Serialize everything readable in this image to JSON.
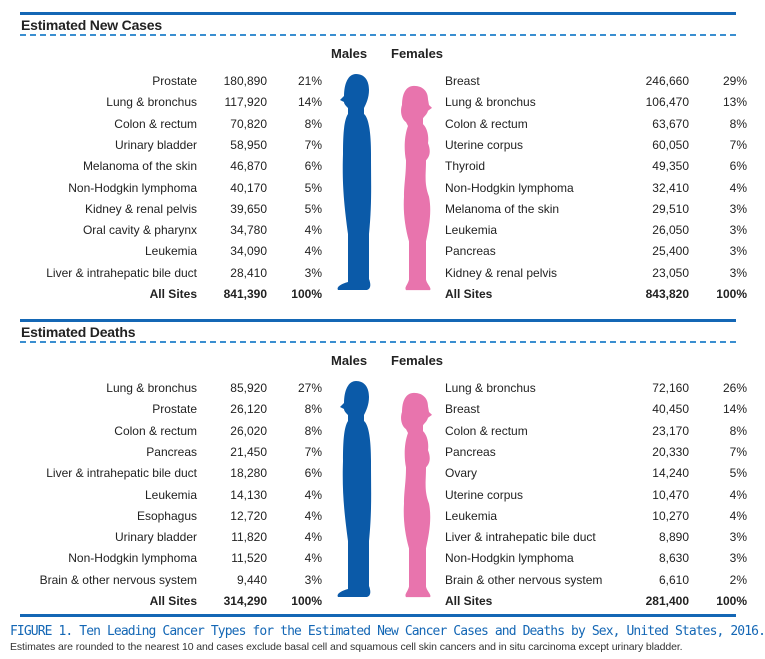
{
  "figure": {
    "caption": "FIGURE 1. Ten Leading Cancer Types for the Estimated New Cancer Cases and Deaths by Sex, United States, 2016.",
    "note": "Estimates are rounded to the nearest 10 and cases exclude basal cell and squamous cell skin cancers and in situ carcinoma except urinary bladder.",
    "colors": {
      "males": "#0b5aa8",
      "females": "#e874ad",
      "rule": "#1467b5"
    },
    "icons": {
      "males": "male-silhouette-icon",
      "females": "female-silhouette-icon"
    }
  },
  "sections": [
    {
      "title": "Estimated New Cases",
      "males_label": "Males",
      "females_label": "Females",
      "males": [
        {
          "site": "Prostate",
          "count": "180,890",
          "pct": "21%"
        },
        {
          "site": "Lung & bronchus",
          "count": "117,920",
          "pct": "14%"
        },
        {
          "site": "Colon & rectum",
          "count": "70,820",
          "pct": "8%"
        },
        {
          "site": "Urinary bladder",
          "count": "58,950",
          "pct": "7%"
        },
        {
          "site": "Melanoma of the skin",
          "count": "46,870",
          "pct": "6%"
        },
        {
          "site": "Non-Hodgkin lymphoma",
          "count": "40,170",
          "pct": "5%"
        },
        {
          "site": "Kidney & renal pelvis",
          "count": "39,650",
          "pct": "5%"
        },
        {
          "site": "Oral cavity & pharynx",
          "count": "34,780",
          "pct": "4%"
        },
        {
          "site": "Leukemia",
          "count": "34,090",
          "pct": "4%"
        },
        {
          "site": "Liver & intrahepatic bile duct",
          "count": "28,410",
          "pct": "3%"
        }
      ],
      "males_total": {
        "site": "All Sites",
        "count": "841,390",
        "pct": "100%"
      },
      "females": [
        {
          "site": "Breast",
          "count": "246,660",
          "pct": "29%"
        },
        {
          "site": "Lung & bronchus",
          "count": "106,470",
          "pct": "13%"
        },
        {
          "site": "Colon & rectum",
          "count": "63,670",
          "pct": "8%"
        },
        {
          "site": "Uterine corpus",
          "count": "60,050",
          "pct": "7%"
        },
        {
          "site": "Thyroid",
          "count": "49,350",
          "pct": "6%"
        },
        {
          "site": "Non-Hodgkin lymphoma",
          "count": "32,410",
          "pct": "4%"
        },
        {
          "site": "Melanoma of the skin",
          "count": "29,510",
          "pct": "3%"
        },
        {
          "site": "Leukemia",
          "count": "26,050",
          "pct": "3%"
        },
        {
          "site": "Pancreas",
          "count": "25,400",
          "pct": "3%"
        },
        {
          "site": "Kidney & renal pelvis",
          "count": "23,050",
          "pct": "3%"
        }
      ],
      "females_total": {
        "site": "All Sites",
        "count": "843,820",
        "pct": "100%"
      }
    },
    {
      "title": "Estimated Deaths",
      "males_label": "Males",
      "females_label": "Females",
      "males": [
        {
          "site": "Lung & bronchus",
          "count": "85,920",
          "pct": "27%"
        },
        {
          "site": "Prostate",
          "count": "26,120",
          "pct": "8%"
        },
        {
          "site": "Colon & rectum",
          "count": "26,020",
          "pct": "8%"
        },
        {
          "site": "Pancreas",
          "count": "21,450",
          "pct": "7%"
        },
        {
          "site": "Liver & intrahepatic bile duct",
          "count": "18,280",
          "pct": "6%"
        },
        {
          "site": "Leukemia",
          "count": "14,130",
          "pct": "4%"
        },
        {
          "site": "Esophagus",
          "count": "12,720",
          "pct": "4%"
        },
        {
          "site": "Urinary bladder",
          "count": "11,820",
          "pct": "4%"
        },
        {
          "site": "Non-Hodgkin lymphoma",
          "count": "11,520",
          "pct": "4%"
        },
        {
          "site": "Brain & other nervous system",
          "count": "9,440",
          "pct": "3%"
        }
      ],
      "males_total": {
        "site": "All Sites",
        "count": "314,290",
        "pct": "100%"
      },
      "females": [
        {
          "site": "Lung & bronchus",
          "count": "72,160",
          "pct": "26%"
        },
        {
          "site": "Breast",
          "count": "40,450",
          "pct": "14%"
        },
        {
          "site": "Colon & rectum",
          "count": "23,170",
          "pct": "8%"
        },
        {
          "site": "Pancreas",
          "count": "20,330",
          "pct": "7%"
        },
        {
          "site": "Ovary",
          "count": "14,240",
          "pct": "5%"
        },
        {
          "site": "Uterine corpus",
          "count": "10,470",
          "pct": "4%"
        },
        {
          "site": "Leukemia",
          "count": "10,270",
          "pct": "4%"
        },
        {
          "site": "Liver & intrahepatic bile duct",
          "count": "8,890",
          "pct": "3%"
        },
        {
          "site": "Non-Hodgkin lymphoma",
          "count": "8,630",
          "pct": "3%"
        },
        {
          "site": "Brain & other nervous system",
          "count": "6,610",
          "pct": "2%"
        }
      ],
      "females_total": {
        "site": "All Sites",
        "count": "281,400",
        "pct": "100%"
      }
    }
  ]
}
